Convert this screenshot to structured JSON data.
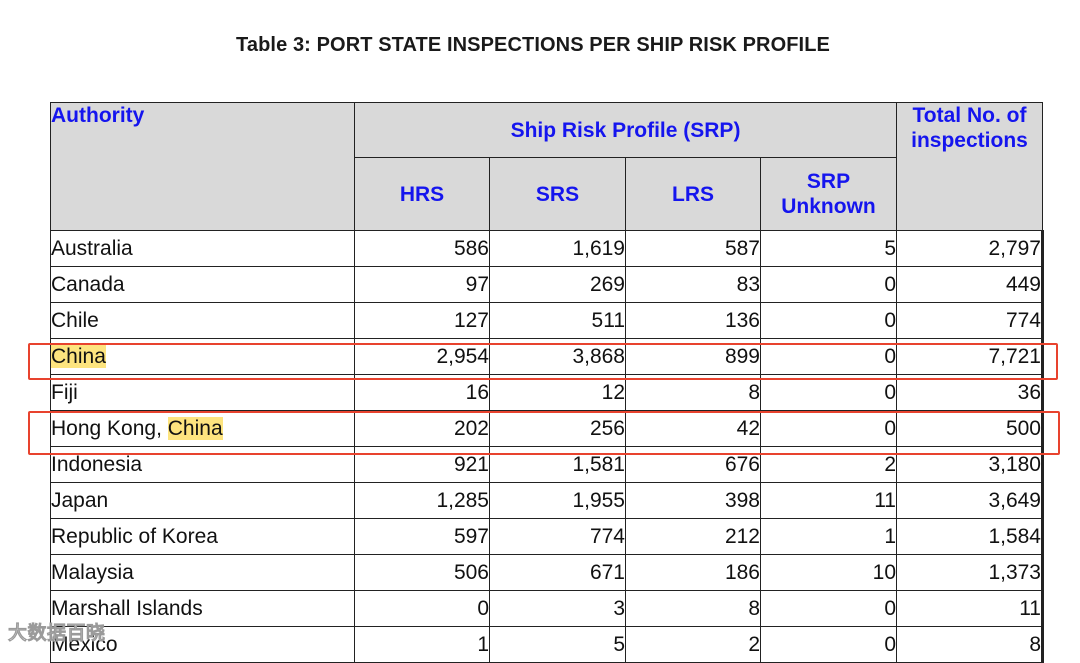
{
  "title": "Table 3: PORT STATE INSPECTIONS PER SHIP RISK PROFILE",
  "headers": {
    "authority": "Authority",
    "srp_group": "Ship Risk Profile (SRP)",
    "hrs": "HRS",
    "srs": "SRS",
    "lrs": "LRS",
    "srp_unknown_1": "SRP",
    "srp_unknown_2": "Unknown",
    "total_1": "Total No. of",
    "total_2": "inspections"
  },
  "rows": [
    {
      "name": "Australia",
      "hrs": "586",
      "srs": "1,619",
      "lrs": "587",
      "unknown": "5",
      "total": "2,797"
    },
    {
      "name": "Canada",
      "hrs": "97",
      "srs": "269",
      "lrs": "83",
      "unknown": "0",
      "total": "449"
    },
    {
      "name": "Chile",
      "hrs": "127",
      "srs": "511",
      "lrs": "136",
      "unknown": "0",
      "total": "774"
    },
    {
      "name": "China",
      "hrs": "2,954",
      "srs": "3,868",
      "lrs": "899",
      "unknown": "0",
      "total": "7,721"
    },
    {
      "name": "Fiji",
      "hrs": "16",
      "srs": "12",
      "lrs": "8",
      "unknown": "0",
      "total": "36"
    },
    {
      "name_prefix": "Hong Kong, ",
      "name_hl": "China",
      "hrs": "202",
      "srs": "256",
      "lrs": "42",
      "unknown": "0",
      "total": "500"
    },
    {
      "name": "Indonesia",
      "hrs": "921",
      "srs": "1,581",
      "lrs": "676",
      "unknown": "2",
      "total": "3,180"
    },
    {
      "name": "Japan",
      "hrs": "1,285",
      "srs": "1,955",
      "lrs": "398",
      "unknown": "11",
      "total": "3,649"
    },
    {
      "name": "Republic of Korea",
      "hrs": "597",
      "srs": "774",
      "lrs": "212",
      "unknown": "1",
      "total": "1,584"
    },
    {
      "name": "Malaysia",
      "hrs": "506",
      "srs": "671",
      "lrs": "186",
      "unknown": "10",
      "total": "1,373"
    },
    {
      "name": "Marshall Islands",
      "hrs": "0",
      "srs": "3",
      "lrs": "8",
      "unknown": "0",
      "total": "11"
    },
    {
      "name": "Mexico",
      "hrs": "1",
      "srs": "5",
      "lrs": "2",
      "unknown": "0",
      "total": "8"
    }
  ],
  "highlight_color": "#fde47f",
  "annotation_color": "#e8432e",
  "watermark": "大数据百晓"
}
